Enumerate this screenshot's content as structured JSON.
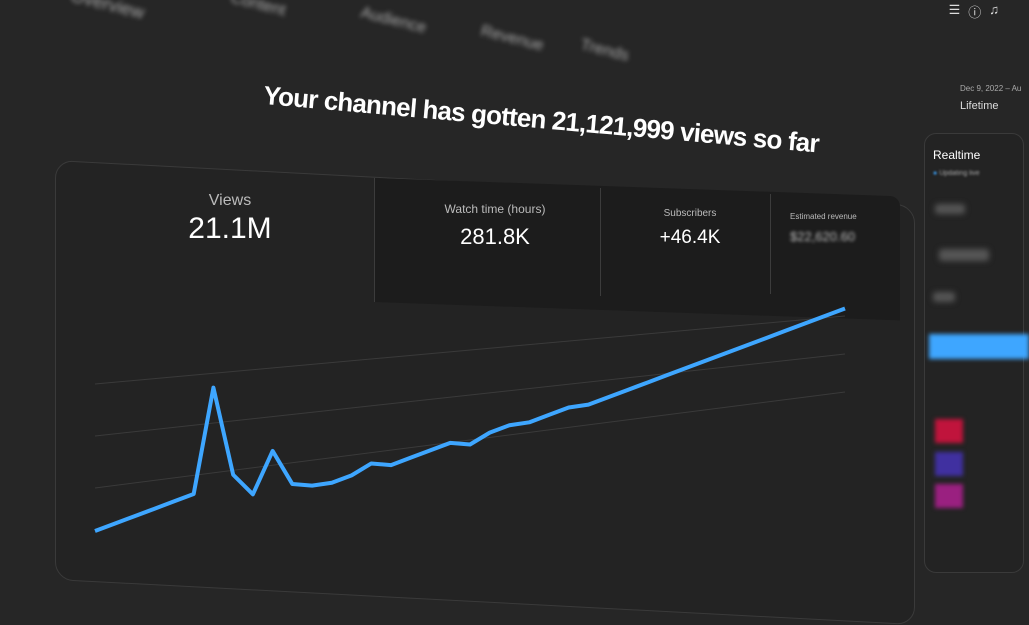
{
  "nav": {
    "tabs": [
      "Overview",
      "Content",
      "Audience",
      "Revenue",
      "Trends"
    ]
  },
  "toolbar": {
    "icons": [
      "create-icon",
      "help-icon",
      "bell-icon"
    ]
  },
  "headline": "Your channel has gotten 21,121,999 views so far",
  "date_range": {
    "range": "Dec 9, 2022 – Au",
    "label": "Lifetime"
  },
  "metrics": [
    {
      "label": "Views",
      "value": "21.1M"
    },
    {
      "label": "Watch time (hours)",
      "value": "281.8K"
    },
    {
      "label": "Subscribers",
      "value": "+46.4K"
    },
    {
      "label": "Estimated revenue",
      "value": "$22,620.60"
    }
  ],
  "realtime": {
    "title": "Realtime",
    "status": "Updating live"
  },
  "colors": {
    "line": "#3ea6ff",
    "background": "#262626",
    "card": "#232323"
  },
  "chart_data": {
    "type": "line",
    "grid": true,
    "series": [
      {
        "values": [
          2,
          3,
          4,
          5,
          6,
          7,
          30,
          10,
          5,
          14,
          6,
          5,
          5,
          6,
          8,
          7,
          8,
          9,
          10,
          9,
          11,
          12,
          12,
          13,
          14,
          14,
          15,
          16,
          17,
          18,
          19,
          20,
          21,
          22,
          23,
          24,
          25,
          26,
          27
        ]
      }
    ]
  }
}
